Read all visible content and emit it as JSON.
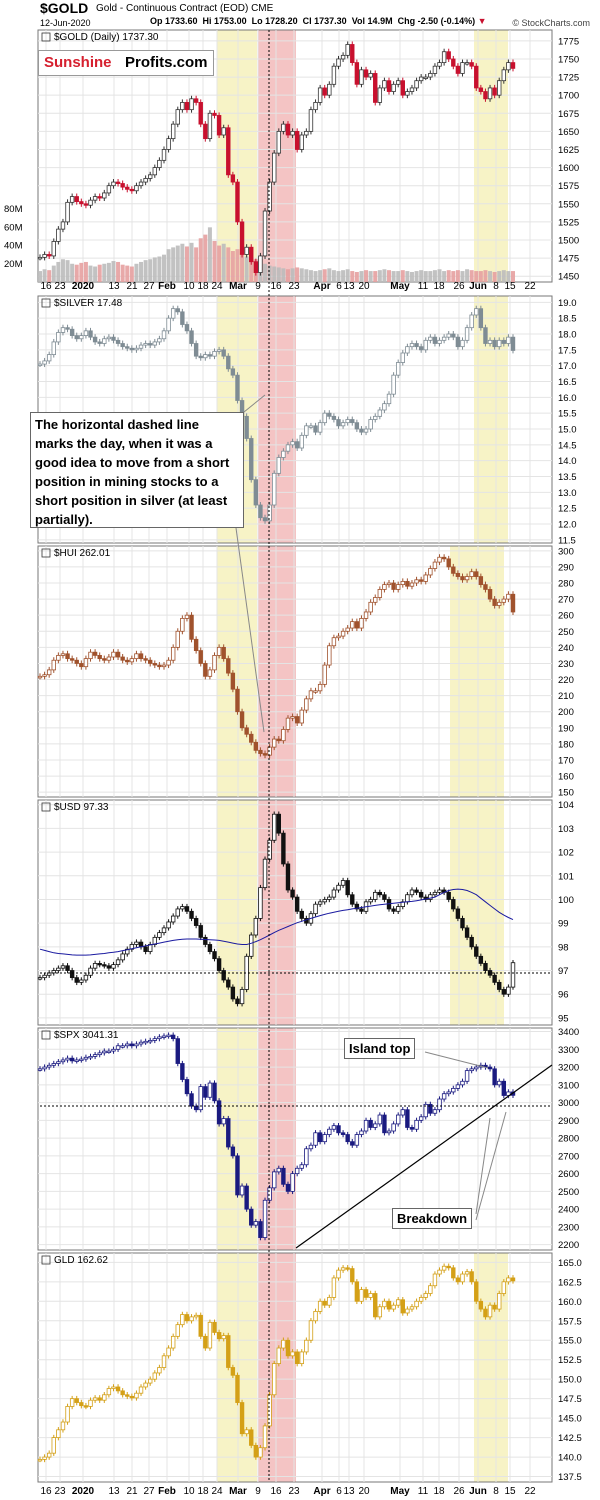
{
  "header": {
    "symbol": "$GOLD",
    "name": "Gold - Continuous Contract (EOD)",
    "exchange": "CME",
    "date": "12-Jun-2020",
    "open": "Op 1733.60",
    "high": "Hi 1753.00",
    "low": "Lo 1728.20",
    "close": "Cl 1737.30",
    "volume": "Vol 14.9M",
    "change": "Chg -2.50 (-0.14%)",
    "credit": "© StockCharts.com"
  },
  "logo": {
    "part1": "Sunshine",
    "part2": "Profits.com"
  },
  "annotation": "The horizontal dashed line marks the day, when it was a good idea to move from a short position in mining stocks to a short position in silver (at least partially).",
  "callouts": {
    "island_top": "Island top",
    "breakdown": "Breakdown"
  },
  "colors": {
    "gold_up": "#333333",
    "gold_down": "#c8102e",
    "silver": "#7f8c94",
    "hui": "#a0522d",
    "usd": "#111111",
    "usd_ma": "#1a1aa0",
    "spx": "#1a1a80",
    "gld": "#d4a017",
    "highlight_yellow": "#f7f3c6",
    "highlight_red": "#f4c4c4",
    "volume_up": "#bbbbbb",
    "volume_down": "#e6a0a0"
  },
  "x_axis": {
    "tick_labels": [
      "16",
      "23",
      "2020",
      "13",
      "21",
      "27",
      "Feb",
      "10",
      "18",
      "24",
      "Mar",
      "9",
      "16",
      "23",
      "Apr",
      "6",
      "13",
      "20",
      "May",
      "11",
      "18",
      "26",
      "Jun",
      "8",
      "15",
      "22"
    ]
  },
  "chart_data": [
    {
      "type": "line",
      "title": "$GOLD (Daily) 1737.30",
      "series": [
        {
          "name": "$GOLD",
          "y": [
            1476,
            1480,
            1478,
            1498,
            1515,
            1525,
            1552,
            1560,
            1553,
            1550,
            1548,
            1555,
            1560,
            1558,
            1565,
            1575,
            1580,
            1578,
            1573,
            1570,
            1568,
            1575,
            1580,
            1585,
            1590,
            1600,
            1610,
            1625,
            1640,
            1660,
            1680,
            1690,
            1680,
            1695,
            1690,
            1660,
            1640,
            1675,
            1672,
            1645,
            1655,
            1590,
            1580,
            1525,
            1480,
            1490,
            1470,
            1455,
            1478,
            1540,
            1580,
            1620,
            1650,
            1660,
            1645,
            1650,
            1625,
            1645,
            1650,
            1680,
            1690,
            1710,
            1700,
            1715,
            1740,
            1750,
            1755,
            1770,
            1745,
            1715,
            1735,
            1725,
            1730,
            1690,
            1710,
            1720,
            1705,
            1715,
            1720,
            1700,
            1705,
            1710,
            1720,
            1725,
            1725,
            1730,
            1740,
            1745,
            1760,
            1750,
            1740,
            1730,
            1745,
            1745,
            1740,
            1710,
            1705,
            1695,
            1710,
            1700,
            1720,
            1735,
            1745,
            1737
          ]
        }
      ],
      "y_tick_labels": [
        "1775",
        "1750",
        "1725",
        "1700",
        "1675",
        "1650",
        "1625",
        "1600",
        "1575",
        "1550",
        "1525",
        "1500",
        "1475",
        "1450"
      ],
      "ylim": [
        1442,
        1790
      ],
      "volume_tick_labels": [
        "80M",
        "60M",
        "40M",
        "20M"
      ]
    },
    {
      "type": "line",
      "title": "$SILVER 17.48",
      "series": [
        {
          "name": "$SILVER",
          "y": [
            17.05,
            17.15,
            17.35,
            17.75,
            18.05,
            18.2,
            18.15,
            17.95,
            17.85,
            17.95,
            18.1,
            17.9,
            17.75,
            17.7,
            17.85,
            17.9,
            17.8,
            17.7,
            17.6,
            17.55,
            17.5,
            17.55,
            17.65,
            17.7,
            17.65,
            17.75,
            17.85,
            18.1,
            18.5,
            18.8,
            18.7,
            18.3,
            18.1,
            17.7,
            17.3,
            17.25,
            17.35,
            17.3,
            17.45,
            17.5,
            17.3,
            16.9,
            16.7,
            15.9,
            15.4,
            14.7,
            13.4,
            12.6,
            12.2,
            12.1,
            12.6,
            13.6,
            14.1,
            14.3,
            14.5,
            14.6,
            14.4,
            14.8,
            15.1,
            15.1,
            14.9,
            15.2,
            15.5,
            15.4,
            15.3,
            15.1,
            15.2,
            15.3,
            15.2,
            15.0,
            14.9,
            15.0,
            15.3,
            15.4,
            15.6,
            15.8,
            16.1,
            16.7,
            17.1,
            17.4,
            17.6,
            17.7,
            17.6,
            17.5,
            17.8,
            17.9,
            17.7,
            17.8,
            17.9,
            18.0,
            17.9,
            17.6,
            17.8,
            18.2,
            18.6,
            18.8,
            18.2,
            17.7,
            17.8,
            17.6,
            17.8,
            17.7,
            17.9,
            17.48
          ]
        }
      ],
      "y_tick_labels": [
        "19.0",
        "18.5",
        "18.0",
        "17.5",
        "17.0",
        "16.5",
        "16.0",
        "15.5",
        "15.0",
        "14.5",
        "14.0",
        "13.5",
        "13.0",
        "12.5",
        "12.0",
        "11.5"
      ],
      "ylim": [
        11.4,
        19.2
      ]
    },
    {
      "type": "line",
      "title": "$HUI 262.01",
      "series": [
        {
          "name": "$HUI",
          "y": [
            222,
            223,
            226,
            232,
            235,
            236,
            233,
            232,
            230,
            228,
            233,
            237,
            235,
            233,
            232,
            234,
            237,
            234,
            232,
            231,
            233,
            236,
            233,
            232,
            230,
            229,
            228,
            229,
            232,
            240,
            250,
            258,
            260,
            245,
            238,
            230,
            222,
            226,
            235,
            240,
            233,
            224,
            214,
            200,
            190,
            186,
            181,
            176,
            174,
            173,
            178,
            183,
            182,
            189,
            196,
            197,
            193,
            201,
            208,
            213,
            213,
            217,
            229,
            241,
            246,
            247,
            250,
            252,
            256,
            252,
            258,
            262,
            268,
            271,
            276,
            279,
            280,
            276,
            279,
            281,
            278,
            280,
            282,
            281,
            285,
            289,
            293,
            296,
            295,
            290,
            286,
            284,
            282,
            284,
            287,
            284,
            279,
            276,
            270,
            266,
            268,
            270,
            273,
            262
          ]
        }
      ],
      "y_tick_labels": [
        "300",
        "290",
        "280",
        "270",
        "260",
        "250",
        "240",
        "230",
        "220",
        "210",
        "200",
        "190",
        "180",
        "170",
        "160",
        "150"
      ],
      "ylim": [
        147,
        303
      ]
    },
    {
      "type": "line",
      "title": "$USD 97.33",
      "series": [
        {
          "name": "$USD",
          "y": [
            96.7,
            96.8,
            96.9,
            97.0,
            97.1,
            97.2,
            97.0,
            96.7,
            96.5,
            96.6,
            96.8,
            97.1,
            97.3,
            97.25,
            97.2,
            97.1,
            97.25,
            97.45,
            97.7,
            97.9,
            98.1,
            98.2,
            98.0,
            97.8,
            98.1,
            98.4,
            98.6,
            98.8,
            99.05,
            99.3,
            99.6,
            99.7,
            99.5,
            99.2,
            98.9,
            98.4,
            98.1,
            97.8,
            97.5,
            97.0,
            96.6,
            96.3,
            95.8,
            95.6,
            96.2,
            97.6,
            98.5,
            99.2,
            100.5,
            101.7,
            102.5,
            103.6,
            102.8,
            101.5,
            100.4,
            100.1,
            99.5,
            99.2,
            99.0,
            99.4,
            99.8,
            99.9,
            100.0,
            100.1,
            100.4,
            100.6,
            100.8,
            100.2,
            99.8,
            99.6,
            99.5,
            99.9,
            100.0,
            100.3,
            100.2,
            100.0,
            99.6,
            99.5,
            99.7,
            99.9,
            100.2,
            100.4,
            100.3,
            100.1,
            100.0,
            100.2,
            100.3,
            100.4,
            100.3,
            100.0,
            99.6,
            99.2,
            98.8,
            98.4,
            98.0,
            97.6,
            97.3,
            97.0,
            96.8,
            96.5,
            96.2,
            96.0,
            96.3,
            97.33
          ]
        },
        {
          "name": "MA",
          "y": [
            97.9,
            97.85,
            97.8,
            97.75,
            97.72,
            97.7,
            97.68,
            97.66,
            97.65,
            97.65,
            97.65,
            97.66,
            97.68,
            97.7,
            97.72,
            97.75,
            97.77,
            97.8,
            97.84,
            97.88,
            97.92,
            97.96,
            98.0,
            98.04,
            98.08,
            98.12,
            98.16,
            98.2,
            98.24,
            98.27,
            98.3,
            98.32,
            98.33,
            98.33,
            98.33,
            98.32,
            98.31,
            98.3,
            98.29,
            98.27,
            98.24,
            98.2,
            98.16,
            98.12,
            98.1,
            98.1,
            98.15,
            98.22,
            98.3,
            98.4,
            98.5,
            98.6,
            98.7,
            98.78,
            98.86,
            98.94,
            99.02,
            99.08,
            99.14,
            99.2,
            99.26,
            99.32,
            99.37,
            99.42,
            99.46,
            99.5,
            99.54,
            99.57,
            99.6,
            99.63,
            99.66,
            99.69,
            99.72,
            99.75,
            99.78,
            99.8,
            99.82,
            99.84,
            99.86,
            99.88,
            99.9,
            99.92,
            99.95,
            99.98,
            100.02,
            100.06,
            100.1,
            100.2,
            100.3,
            100.38,
            100.42,
            100.44,
            100.42,
            100.38,
            100.3,
            100.2,
            100.05,
            99.9,
            99.75,
            99.6,
            99.46,
            99.34,
            99.24,
            99.15
          ]
        }
      ],
      "y_tick_labels": [
        "104",
        "103",
        "102",
        "101",
        "100",
        "99",
        "98",
        "97",
        "96",
        "95"
      ],
      "ylim": [
        94.7,
        104.2
      ]
    },
    {
      "type": "line",
      "title": "$SPX 3041.31",
      "series": [
        {
          "name": "$SPX",
          "y": [
            3190,
            3200,
            3210,
            3220,
            3230,
            3240,
            3250,
            3235,
            3240,
            3245,
            3255,
            3260,
            3270,
            3280,
            3290,
            3290,
            3300,
            3320,
            3320,
            3330,
            3320,
            3330,
            3340,
            3345,
            3350,
            3360,
            3370,
            3375,
            3380,
            3360,
            3220,
            3130,
            3050,
            2980,
            2960,
            3090,
            3030,
            3110,
            3010,
            2880,
            2910,
            2750,
            2700,
            2480,
            2530,
            2400,
            2310,
            2330,
            2240,
            2450,
            2520,
            2610,
            2630,
            2540,
            2500,
            2600,
            2630,
            2650,
            2740,
            2760,
            2830,
            2780,
            2820,
            2850,
            2870,
            2830,
            2820,
            2780,
            2760,
            2820,
            2840,
            2900,
            2860,
            2880,
            2930,
            2830,
            2840,
            2880,
            2930,
            2960,
            2860,
            2850,
            2900,
            2920,
            2990,
            2940,
            2960,
            3020,
            3050,
            3060,
            3080,
            3100,
            3120,
            3180,
            3190,
            3200,
            3210,
            3200,
            3190,
            3100,
            3120,
            3040,
            3060,
            3041
          ]
        }
      ],
      "y_tick_labels": [
        "3400",
        "3300",
        "3200",
        "3100",
        "3000",
        "2900",
        "2800",
        "2700",
        "2600",
        "2500",
        "2400",
        "2300",
        "2200"
      ],
      "ylim": [
        2170,
        3420
      ]
    },
    {
      "type": "line",
      "title": "GLD 162.62",
      "series": [
        {
          "name": "GLD",
          "y": [
            139.7,
            140.0,
            140.5,
            142.5,
            143.5,
            144.5,
            146.5,
            147.5,
            147.0,
            146.6,
            146.5,
            147.3,
            147.6,
            147.3,
            148.0,
            148.8,
            149.0,
            148.5,
            148.0,
            147.8,
            147.6,
            148.2,
            149.0,
            149.5,
            150.0,
            150.8,
            151.5,
            153.0,
            154.0,
            155.5,
            157.0,
            158.3,
            157.5,
            158.0,
            158.2,
            155.5,
            154.0,
            157.3,
            156.0,
            155.2,
            155.6,
            151.5,
            150.5,
            147.0,
            143.0,
            143.5,
            141.5,
            140.0,
            141.2,
            144.0,
            148.0,
            152.0,
            154.0,
            155.0,
            153.0,
            153.5,
            152.0,
            153.5,
            155.0,
            157.5,
            158.7,
            160.0,
            159.5,
            160.5,
            163.0,
            164.0,
            164.3,
            164.2,
            162.5,
            160.0,
            161.5,
            160.5,
            161.0,
            158.0,
            159.3,
            160.0,
            159.0,
            159.5,
            160.2,
            158.5,
            159.0,
            159.3,
            160.0,
            160.5,
            161.0,
            162.0,
            163.5,
            164.0,
            164.5,
            164.3,
            163.0,
            162.5,
            163.5,
            163.8,
            162.5,
            160.0,
            159.0,
            158.0,
            159.5,
            159.0,
            161.0,
            162.5,
            163.0,
            162.62
          ]
        }
      ],
      "y_tick_labels": [
        "165.0",
        "162.5",
        "160.0",
        "157.5",
        "155.0",
        "152.5",
        "150.0",
        "147.5",
        "145.0",
        "142.5",
        "140.0",
        "137.5"
      ],
      "ylim": [
        136.8,
        166.2
      ]
    }
  ]
}
